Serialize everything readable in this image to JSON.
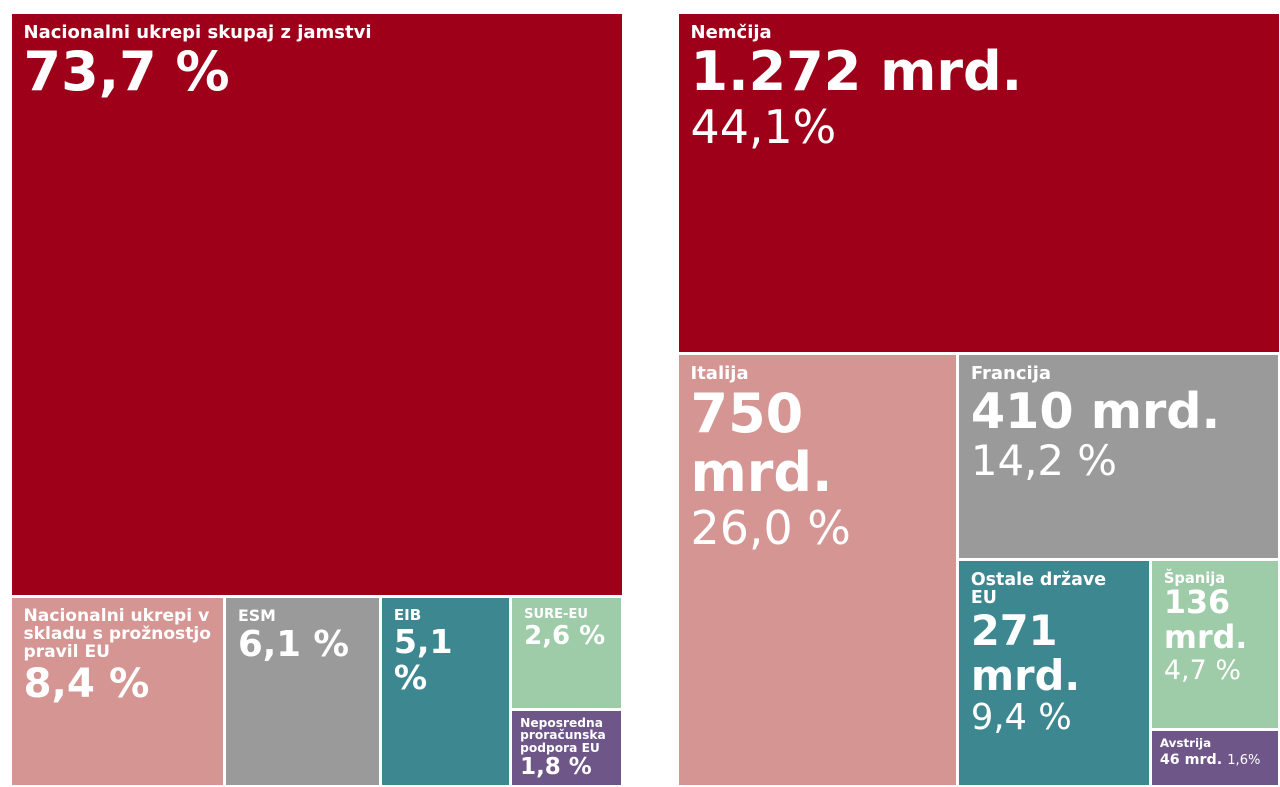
{
  "chart_data": [
    {
      "type": "treemap",
      "categories": [
        "Nacionalni ukrepi skupaj z jamstvi",
        "Nacionalni ukrepi v skladu s prožnostjo pravil EU",
        "ESM",
        "EIB",
        "SURE-EU",
        "Neposredna proračunska podpora EU"
      ],
      "values": [
        73.7,
        8.4,
        6.1,
        5.1,
        2.6,
        1.8
      ],
      "value_labels": [
        "73,7 %",
        "8,4 %",
        "6,1 %",
        "5,1 %",
        "2,6 %",
        "1,8 %"
      ],
      "colors": [
        "#9e0019",
        "#d49593",
        "#9a9a9a",
        "#3d8790",
        "#9ecba8",
        "#6e5688"
      ]
    },
    {
      "type": "treemap",
      "categories": [
        "Nemčija",
        "Italija",
        "Francija",
        "Ostale države EU",
        "Španija",
        "Avstrija"
      ],
      "values": [
        1272,
        750,
        410,
        271,
        136,
        46
      ],
      "value_labels": [
        "1.272 mrd.",
        "750 mrd.",
        "410 mrd.",
        "271 mrd.",
        "136 mrd.",
        "46 mrd."
      ],
      "shares": [
        44.1,
        26.0,
        14.2,
        9.4,
        4.7,
        1.6
      ],
      "share_labels": [
        "44,1%",
        "26,0 %",
        "14,2 %",
        "9,4 %",
        "4,7 %",
        "1,6%"
      ],
      "colors": [
        "#9e0019",
        "#d49593",
        "#9a9a9a",
        "#3d8790",
        "#9ecba8",
        "#6e5688"
      ]
    }
  ]
}
